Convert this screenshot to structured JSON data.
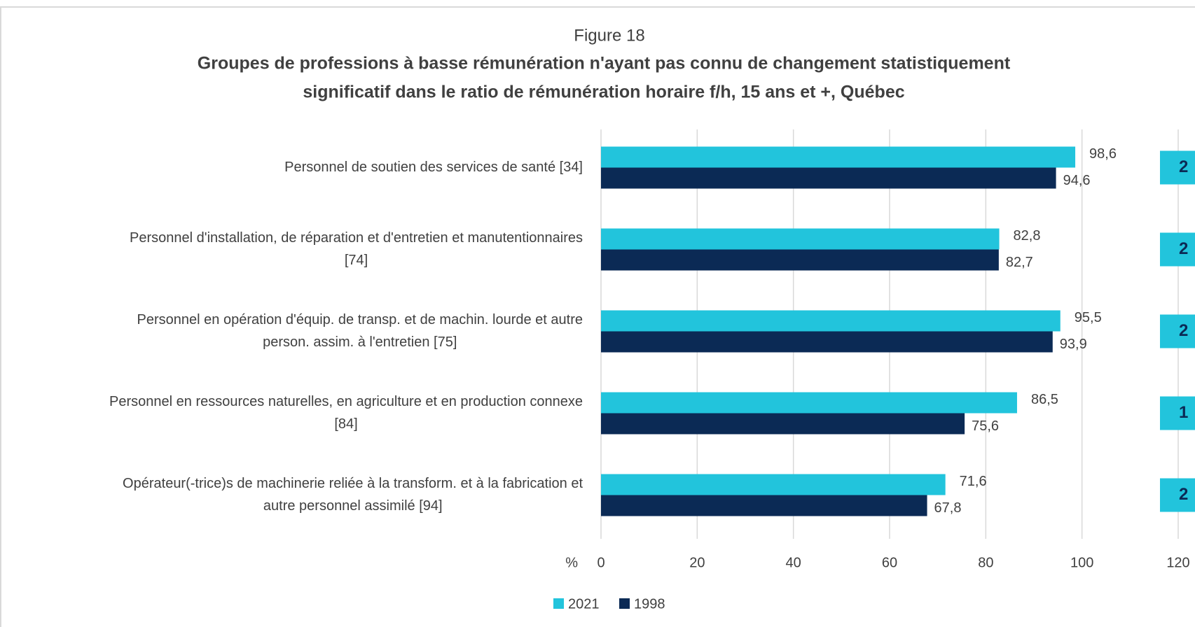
{
  "chart_data": {
    "type": "barh",
    "title": "Figure 18",
    "subtitle": [
      "Groupes de professions à basse rémunération n'ayant pas connu de changement statistiquement",
      "significatif dans le ratio de rémunération horaire f/h, 15 ans et +, Québec"
    ],
    "categories": [
      [
        "Personnel de soutien des services de santé [34]"
      ],
      [
        "Personnel d'installation, de réparation et d'entretien et manutentionnaires",
        "[74]"
      ],
      [
        "Personnel en opération d'équip. de transp. et de machin. lourde et autre",
        "person. assim. à l'entretien [75]"
      ],
      [
        "Personnel en ressources naturelles, en agriculture et en production connexe",
        "[84]"
      ],
      [
        "Opérateur(-trice)s de machinerie reliée à la transform. et à la fabrication et",
        "autre personnel assimilé [94]"
      ]
    ],
    "series": [
      {
        "name": "2021",
        "color": "#22c4dc",
        "values": [
          98.6,
          82.8,
          95.5,
          86.5,
          71.6
        ],
        "value_labels": [
          "98,6",
          "82,8",
          "95,5",
          "86,5",
          "71,6"
        ]
      },
      {
        "name": "1998",
        "color": "#0b2a55",
        "values": [
          94.6,
          82.7,
          93.9,
          75.6,
          67.8
        ],
        "value_labels": [
          "94,6",
          "82,7",
          "93,9",
          "75,6",
          "67,8"
        ]
      }
    ],
    "side_labels": [
      "2",
      "2",
      "2",
      "1",
      "2"
    ],
    "xlabel": "%",
    "xlim": [
      0,
      120
    ],
    "xticks": [
      0,
      20,
      40,
      60,
      80,
      100,
      120
    ],
    "grid": true
  }
}
